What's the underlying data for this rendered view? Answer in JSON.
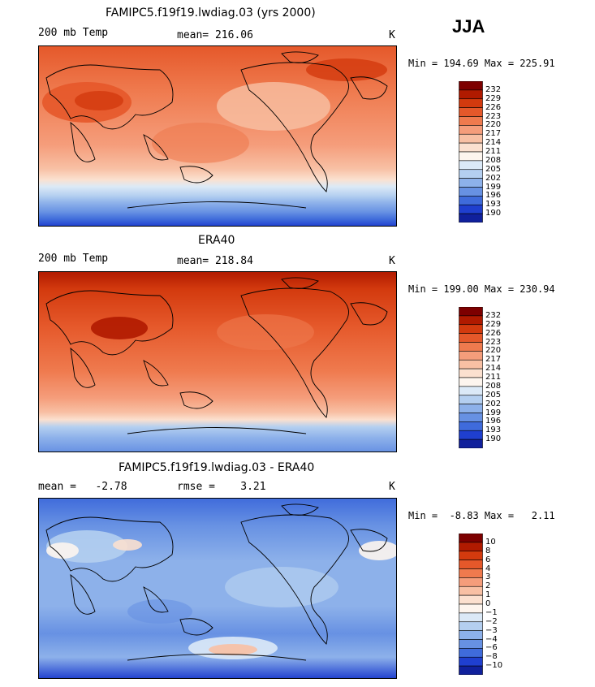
{
  "season": "JJA",
  "panels": [
    {
      "title": "FAMIPC5.f19f19.lwdiag.03 (yrs 2000)",
      "left_label": "200 mb Temp",
      "center_label": "mean= 216.06",
      "right_label": "K",
      "minmax": "Min = 194.69 Max = 225.91"
    },
    {
      "title": "ERA40",
      "left_label": "200 mb Temp",
      "center_label": "mean= 218.84",
      "right_label": "K",
      "minmax": "Min = 199.00 Max = 230.94"
    },
    {
      "title": "FAMIPC5.f19f19.lwdiag.03 - ERA40",
      "left_label": "mean =   -2.78",
      "center_label": "rmse =    3.21",
      "right_label": "K",
      "minmax": "Min =  -8.83 Max =   2.11"
    }
  ],
  "temp_scale": {
    "labels": [
      "232",
      "229",
      "226",
      "223",
      "220",
      "217",
      "214",
      "211",
      "208",
      "205",
      "202",
      "199",
      "196",
      "193",
      "190"
    ],
    "colors": [
      "#7d0000",
      "#b01a00",
      "#d33a0e",
      "#e5582a",
      "#ef7a4e",
      "#f59d7b",
      "#f8c0a4",
      "#fbe0cf",
      "#fdf5ee",
      "#dbe9f7",
      "#b4cff0",
      "#8db1ea",
      "#6791e3",
      "#3f6bdb",
      "#1f3fcf",
      "#10209c"
    ]
  },
  "diff_scale": {
    "labels": [
      "10",
      "8",
      "6",
      "4",
      "3",
      "2",
      "1",
      "0",
      "−1",
      "−2",
      "−3",
      "−4",
      "−6",
      "−8",
      "−10"
    ],
    "colors": [
      "#7d0000",
      "#b01a00",
      "#d33a0e",
      "#e5582a",
      "#ef7a4e",
      "#f59d7b",
      "#f8c0a4",
      "#fbe0cf",
      "#fdf5ee",
      "#dbe9f7",
      "#b4cff0",
      "#8db1ea",
      "#6791e3",
      "#3f6bdb",
      "#1f3fcf",
      "#10209c"
    ]
  }
}
